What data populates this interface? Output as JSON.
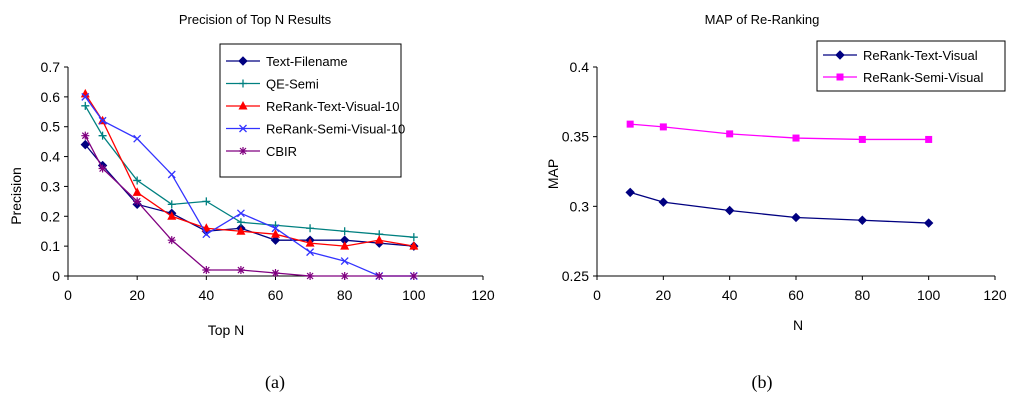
{
  "colors": {
    "text_filename": "#000080",
    "qe_semi": "#008080",
    "rerank_text_visual_10": "#ff0000",
    "rerank_semi_visual_10": "#3333ff",
    "cbir": "#800080",
    "rerank_text_visual": "#000080",
    "rerank_semi_visual": "#ff00ff"
  },
  "captions": {
    "a": "(a)",
    "b": "(b)"
  },
  "chart_data": [
    {
      "type": "line",
      "title": "Precision of Top N Results",
      "xlabel": "Top N",
      "ylabel": "Precision",
      "xlim": [
        0,
        120
      ],
      "ylim": [
        0,
        0.7
      ],
      "xticks": [
        0,
        20,
        40,
        60,
        80,
        100,
        120
      ],
      "yticks": [
        0,
        0.1,
        0.2,
        0.3,
        0.4,
        0.5,
        0.6,
        0.7
      ],
      "legend_position": "top-right",
      "grid": false,
      "series": [
        {
          "name": "Text-Filename",
          "marker": "diamond",
          "color": "#000080",
          "x": [
            5,
            10,
            20,
            30,
            40,
            50,
            60,
            70,
            80,
            90,
            100
          ],
          "y": [
            0.44,
            0.37,
            0.24,
            0.21,
            0.15,
            0.16,
            0.12,
            0.12,
            0.12,
            0.11,
            0.1
          ]
        },
        {
          "name": "QE-Semi",
          "marker": "plus",
          "color": "#008080",
          "x": [
            5,
            10,
            20,
            30,
            40,
            50,
            60,
            70,
            80,
            90,
            100
          ],
          "y": [
            0.57,
            0.47,
            0.32,
            0.24,
            0.25,
            0.18,
            0.17,
            0.16,
            0.15,
            0.14,
            0.13
          ]
        },
        {
          "name": "ReRank-Text-Visual-10",
          "marker": "triangle",
          "color": "#ff0000",
          "x": [
            5,
            10,
            20,
            30,
            40,
            50,
            60,
            70,
            80,
            90,
            100
          ],
          "y": [
            0.61,
            0.52,
            0.28,
            0.2,
            0.16,
            0.15,
            0.14,
            0.11,
            0.1,
            0.12,
            0.1
          ]
        },
        {
          "name": "ReRank-Semi-Visual-10",
          "marker": "x",
          "color": "#3333ff",
          "x": [
            5,
            10,
            20,
            30,
            40,
            50,
            60,
            70,
            80,
            90,
            100
          ],
          "y": [
            0.6,
            0.52,
            0.46,
            0.34,
            0.14,
            0.21,
            0.16,
            0.08,
            0.05,
            0.0,
            0.0
          ]
        },
        {
          "name": "CBIR",
          "marker": "star",
          "color": "#800080",
          "x": [
            5,
            10,
            20,
            30,
            40,
            50,
            60,
            70,
            80,
            90,
            100
          ],
          "y": [
            0.47,
            0.36,
            0.25,
            0.12,
            0.02,
            0.02,
            0.01,
            0.0,
            0.0,
            0.0,
            0.0
          ]
        }
      ]
    },
    {
      "type": "line",
      "title": "MAP of Re-Ranking",
      "xlabel": "N",
      "ylabel": "MAP",
      "xlim": [
        0,
        120
      ],
      "ylim": [
        0.25,
        0.4
      ],
      "xticks": [
        0,
        20,
        40,
        60,
        80,
        100,
        120
      ],
      "yticks": [
        0.25,
        0.3,
        0.35,
        0.4
      ],
      "legend_position": "top-right",
      "grid": false,
      "series": [
        {
          "name": "ReRank-Text-Visual",
          "marker": "diamond",
          "color": "#000080",
          "x": [
            10,
            20,
            40,
            60,
            80,
            100
          ],
          "y": [
            0.31,
            0.303,
            0.297,
            0.292,
            0.29,
            0.288
          ]
        },
        {
          "name": "ReRank-Semi-Visual",
          "marker": "square",
          "color": "#ff00ff",
          "x": [
            10,
            20,
            40,
            60,
            80,
            100
          ],
          "y": [
            0.359,
            0.357,
            0.352,
            0.349,
            0.348,
            0.348
          ]
        }
      ]
    }
  ]
}
